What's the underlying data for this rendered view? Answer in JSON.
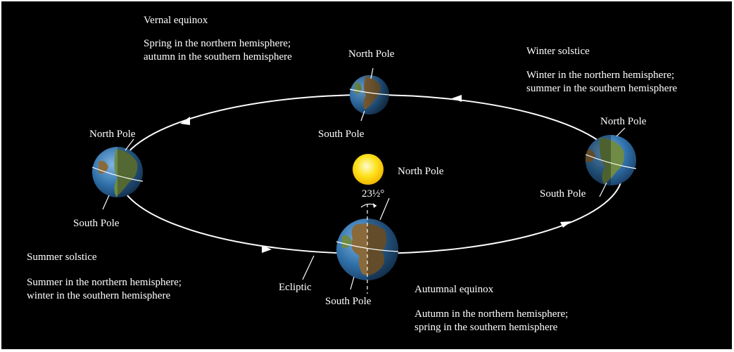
{
  "colors": {
    "background": "#000000",
    "orbit": "#ffffff",
    "sun": "#fde21a",
    "ocean": "#2f6fa8",
    "land": "#8a6a3a"
  },
  "seasons": {
    "vernal": {
      "title": "Vernal equinox",
      "desc_line1": "Spring in the northern hemisphere;",
      "desc_line2": "autumn in the southern hemisphere"
    },
    "winter": {
      "title": "Winter solstice",
      "desc_line1": "Winter in the northern hemisphere;",
      "desc_line2": "summer in the southern hemisphere"
    },
    "summer": {
      "title": "Summer solstice",
      "desc_line1": "Summer in the northern hemisphere;",
      "desc_line2": "winter in the southern hemisphere"
    },
    "autumnal": {
      "title": "Autumnal equinox",
      "desc_line1": "Autumn in the northern hemisphere;",
      "desc_line2": "spring in the southern hemisphere"
    }
  },
  "poles": {
    "north": "North Pole",
    "south": "South Pole"
  },
  "tilt_label": "23½°",
  "ecliptic_label": "Ecliptic"
}
